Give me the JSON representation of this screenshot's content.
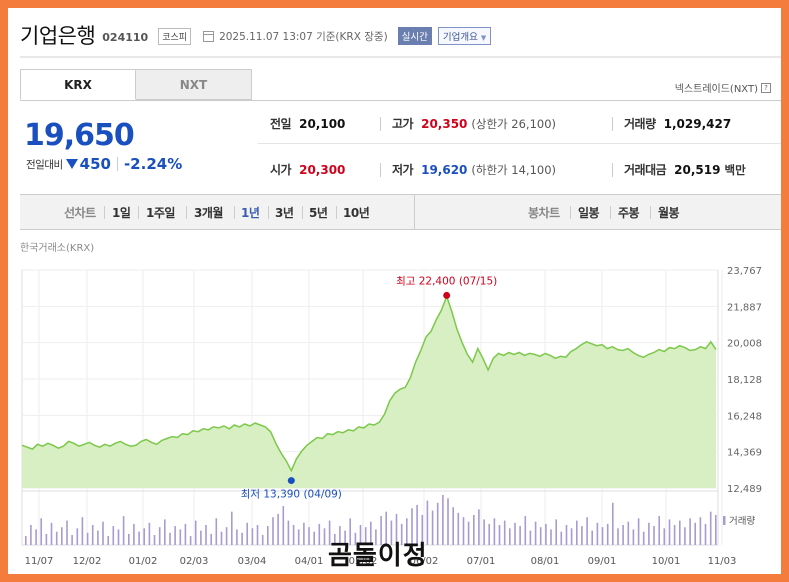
{
  "header": {
    "company_name": "기업은행",
    "stock_code": "024110",
    "market": "코스피",
    "datetime": "2025.11.07 13:07 기준(KRX 장중)",
    "realtime_label": "실시간",
    "overview_label": "기업개요",
    "calendar_icon": "calendar-icon",
    "dropdown_icon": "caret-down-icon"
  },
  "tabs": [
    {
      "label": "KRX",
      "active": true
    },
    {
      "label": "NXT",
      "active": false
    }
  ],
  "nextrade": {
    "label": "넥스트레이드(NXT)",
    "help_icon": "question-icon"
  },
  "quote": {
    "price": "19,650",
    "change_label": "전일대비",
    "change_direction": "down",
    "change_icon": "down-triangle-icon",
    "change_amount": "450",
    "change_percent": "-2.24%"
  },
  "summary": {
    "prev_close": {
      "label": "전일",
      "value": "20,100"
    },
    "high": {
      "label": "고가",
      "value": "20,350",
      "sub": "(상한가 26,100)"
    },
    "volume": {
      "label": "거래량",
      "value": "1,029,427"
    },
    "open": {
      "label": "시가",
      "value": "20,300"
    },
    "low": {
      "label": "저가",
      "value": "19,620",
      "sub": "(하한가 14,100)"
    },
    "amount": {
      "label": "거래대금",
      "value": "20,519",
      "unit": "백만"
    }
  },
  "period_bar": {
    "line_label": "선차트",
    "line_periods": [
      "1일",
      "1주일",
      "3개월",
      "1년",
      "3년",
      "5년",
      "10년"
    ],
    "active_period": "1년",
    "candle_label": "봉차트",
    "candle_periods": [
      "일봉",
      "주봉",
      "월봉"
    ]
  },
  "chart_source": "한국거래소(KRX)",
  "colors": {
    "down": "#1a4fbf",
    "up": "#d0021b",
    "line": "#7cc84a",
    "area": "#d7efc2",
    "volume": "#a79bd1",
    "frame": "#f47c3c"
  },
  "chart_data": {
    "type": "area",
    "y_ticks": [
      "23,767",
      "21,887",
      "20,008",
      "18,128",
      "16,248",
      "14,369",
      "12,489"
    ],
    "ylim": [
      12489,
      23767
    ],
    "x_ticks": [
      "11/07",
      "12/02",
      "01/02",
      "02/03",
      "03/04",
      "04/01",
      "05/02",
      "06/02",
      "07/01",
      "08/01",
      "09/01",
      "10/01",
      "11/03"
    ],
    "high_annotation": {
      "label": "최고 22,400 (07/15)",
      "value": 22400,
      "date": "07/15"
    },
    "low_annotation": {
      "label": "최저 13,390 (04/09)",
      "value": 13390,
      "date": "04/09"
    },
    "volume_label": "거래량",
    "series": [
      {
        "values": [
          14700,
          14600,
          14500,
          14750,
          14650,
          14800,
          14700,
          14550,
          14650,
          14900,
          14800,
          14650,
          14750,
          14850,
          14700,
          14600,
          14750,
          14650,
          14800,
          14900,
          14750,
          14650,
          14700,
          14900,
          15000,
          14850,
          14750,
          14950,
          15050,
          15150,
          15100,
          15300,
          15250,
          15450,
          15400,
          15550,
          15500,
          15650,
          15600,
          15700,
          15550,
          15750,
          15650,
          15800,
          15700,
          15850,
          15750,
          15650,
          15400,
          14800,
          14300,
          13900,
          13390,
          14000,
          14400,
          14700,
          14900,
          15100,
          15050,
          15300,
          15250,
          15400,
          15350,
          15500,
          15450,
          15650,
          15600,
          15800,
          15750,
          15900,
          16300,
          17000,
          17400,
          17600,
          17700,
          18200,
          19000,
          19600,
          20300,
          20600,
          21200,
          21700,
          22400,
          21600,
          20700,
          20000,
          19400,
          19000,
          19700,
          19200,
          18600,
          19200,
          19450,
          19350,
          19500,
          19400,
          19500,
          19350,
          19450,
          19400,
          19300,
          19450,
          19350,
          19200,
          19300,
          19250,
          19550,
          19700,
          19900,
          20050,
          19950,
          19850,
          19900,
          19700,
          19800,
          19650,
          19600,
          19700,
          19500,
          19350,
          19250,
          19400,
          19500,
          19650,
          19550,
          19750,
          19700,
          19850,
          19750,
          19600,
          19650,
          19800,
          19700,
          20050,
          19650
        ]
      }
    ]
  },
  "watermark": "곰돌이정"
}
